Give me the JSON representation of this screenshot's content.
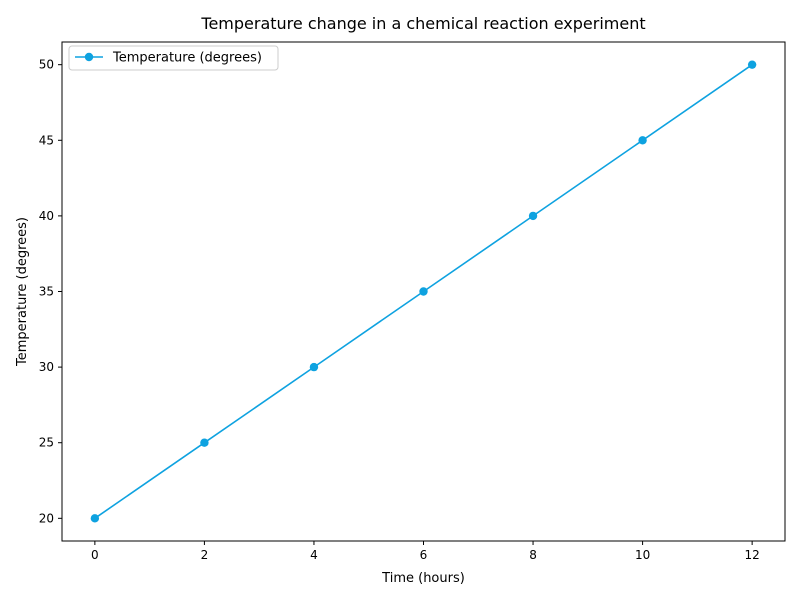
{
  "chart_data": {
    "type": "line",
    "title": "Temperature change in a chemical reaction experiment",
    "xlabel": "Time (hours)",
    "ylabel": "Temperature (degrees)",
    "x": [
      0,
      2,
      4,
      6,
      8,
      10,
      12
    ],
    "series": [
      {
        "name": "Temperature (degrees)",
        "values": [
          20,
          25,
          30,
          35,
          40,
          45,
          50
        ]
      }
    ],
    "xlim": [
      -0.6,
      12.6
    ],
    "ylim": [
      18.5,
      51.5
    ],
    "xticks": [
      0,
      2,
      4,
      6,
      8,
      10,
      12
    ],
    "yticks": [
      20,
      25,
      30,
      35,
      40,
      45,
      50
    ],
    "line_color": "#0ea2e0",
    "marker": "circle",
    "grid": false,
    "legend_position": "top-left"
  }
}
